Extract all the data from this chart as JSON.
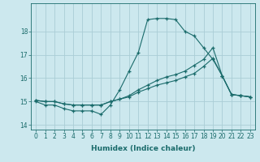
{
  "xlabel": "Humidex (Indice chaleur)",
  "background_color": "#cce8ee",
  "grid_color": "#aacdd6",
  "line_color": "#1a6b6b",
  "x_ticks": [
    0,
    1,
    2,
    3,
    4,
    5,
    6,
    7,
    8,
    9,
    10,
    11,
    12,
    13,
    14,
    15,
    16,
    17,
    18,
    19,
    20,
    21,
    22,
    23
  ],
  "ylim": [
    13.8,
    19.2
  ],
  "xlim": [
    -0.5,
    23.5
  ],
  "yticks": [
    14,
    15,
    16,
    17,
    18
  ],
  "line1_x": [
    0,
    1,
    2,
    3,
    4,
    5,
    6,
    7,
    8,
    9,
    10,
    11,
    12,
    13,
    14,
    15,
    16,
    17,
    18,
    19,
    20,
    21,
    22,
    23
  ],
  "line1_y": [
    15.0,
    14.85,
    14.85,
    14.7,
    14.6,
    14.6,
    14.6,
    14.45,
    14.85,
    15.5,
    16.3,
    17.1,
    18.5,
    18.55,
    18.55,
    18.5,
    18.0,
    17.8,
    17.3,
    16.8,
    16.1,
    15.3,
    15.25,
    15.2
  ],
  "line2_x": [
    0,
    1,
    2,
    3,
    4,
    5,
    6,
    7,
    8,
    9,
    10,
    11,
    12,
    13,
    14,
    15,
    16,
    17,
    18,
    19,
    20,
    21,
    22,
    23
  ],
  "line2_y": [
    15.05,
    15.0,
    15.0,
    14.9,
    14.85,
    14.85,
    14.85,
    14.85,
    15.0,
    15.1,
    15.2,
    15.4,
    15.55,
    15.7,
    15.8,
    15.9,
    16.05,
    16.2,
    16.5,
    16.85,
    16.1,
    15.3,
    15.25,
    15.2
  ],
  "line3_x": [
    0,
    1,
    2,
    3,
    4,
    5,
    6,
    7,
    8,
    9,
    10,
    11,
    12,
    13,
    14,
    15,
    16,
    17,
    18,
    19,
    20,
    21,
    22,
    23
  ],
  "line3_y": [
    15.05,
    15.0,
    15.0,
    14.9,
    14.85,
    14.85,
    14.85,
    14.85,
    15.0,
    15.1,
    15.25,
    15.5,
    15.7,
    15.9,
    16.05,
    16.15,
    16.3,
    16.55,
    16.8,
    17.3,
    16.1,
    15.3,
    15.25,
    15.2
  ]
}
